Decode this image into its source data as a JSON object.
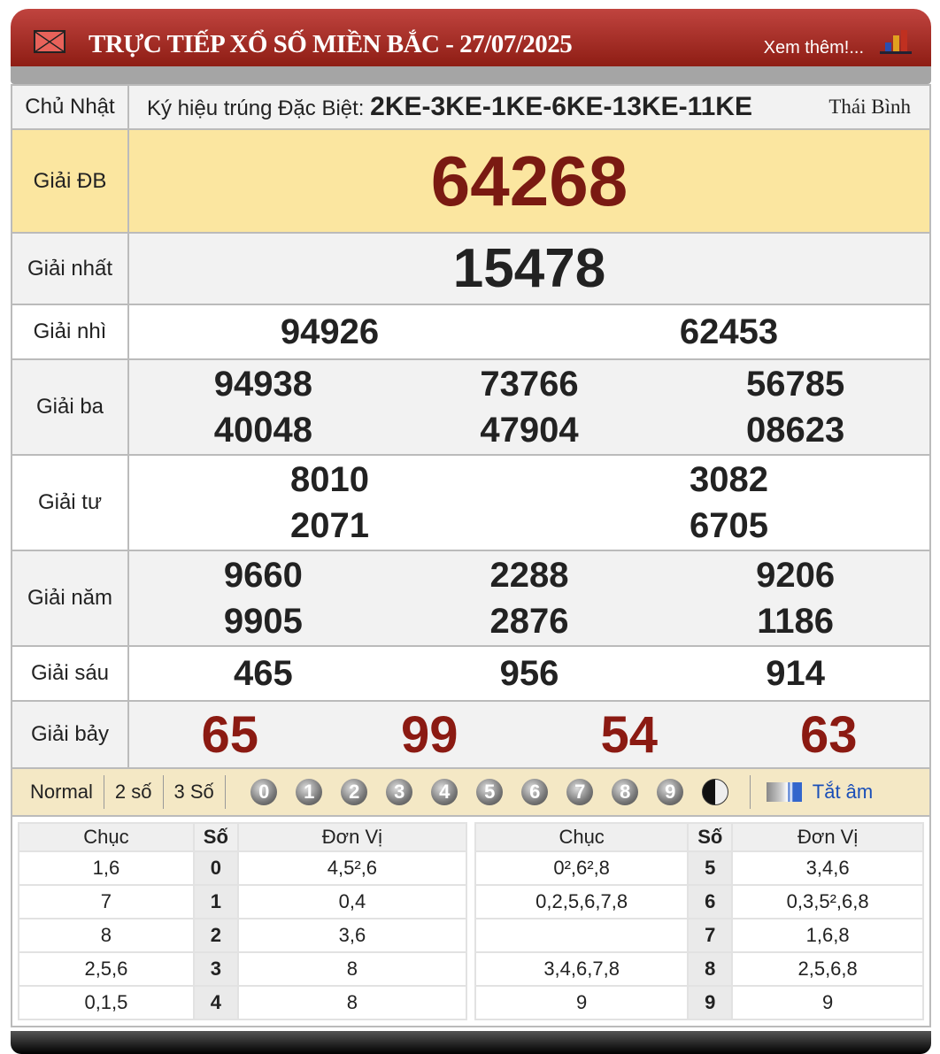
{
  "header": {
    "title": "TRỰC TIẾP XỔ SỐ MIỀN BẮC - 27/07/2025",
    "more_link": "Xem thêm!..."
  },
  "info": {
    "day": "Chủ Nhật",
    "code_label": "Ký hiệu trúng Đặc Biệt:",
    "code": "2KE-3KE-1KE-6KE-13KE-11KE",
    "province": "Thái Bình"
  },
  "prizes": {
    "db": {
      "label": "Giải ĐB",
      "numbers": [
        "64268"
      ]
    },
    "g1": {
      "label": "Giải nhất",
      "numbers": [
        "15478"
      ]
    },
    "g2": {
      "label": "Giải nhì",
      "numbers": [
        "94926",
        "62453"
      ]
    },
    "g3": {
      "label": "Giải ba",
      "numbers": [
        "94938",
        "73766",
        "56785",
        "40048",
        "47904",
        "08623"
      ]
    },
    "g4": {
      "label": "Giải tư",
      "numbers": [
        "8010",
        "3082",
        "2071",
        "6705"
      ]
    },
    "g5": {
      "label": "Giải năm",
      "numbers": [
        "9660",
        "2288",
        "9206",
        "9905",
        "2876",
        "1186"
      ]
    },
    "g6": {
      "label": "Giải sáu",
      "numbers": [
        "465",
        "956",
        "914"
      ]
    },
    "g7": {
      "label": "Giải bảy",
      "numbers": [
        "65",
        "99",
        "54",
        "63"
      ]
    }
  },
  "controls": {
    "modes": [
      "Normal",
      "2 số",
      "3 Số"
    ],
    "balls": [
      "0",
      "1",
      "2",
      "3",
      "4",
      "5",
      "6",
      "7",
      "8",
      "9"
    ],
    "mute": "Tắt âm"
  },
  "loto": {
    "headers": {
      "chuc": "Chục",
      "so": "Số",
      "donvi": "Đơn Vị"
    },
    "left": [
      {
        "chuc": "1,6",
        "so": "0",
        "donvi": "4,5²,6"
      },
      {
        "chuc": "7",
        "so": "1",
        "donvi": "0,4"
      },
      {
        "chuc": "8",
        "so": "2",
        "donvi": "3,6"
      },
      {
        "chuc": "2,5,6",
        "so": "3",
        "donvi": "8"
      },
      {
        "chuc": "0,1,5",
        "so": "4",
        "donvi": "8"
      }
    ],
    "right": [
      {
        "chuc": "0²,6²,8",
        "so": "5",
        "donvi": "3,4,6"
      },
      {
        "chuc": "0,2,5,6,7,8",
        "so": "6",
        "donvi": "0,3,5²,6,8"
      },
      {
        "chuc": "",
        "so": "7",
        "donvi": "1,6,8"
      },
      {
        "chuc": "3,4,6,7,8",
        "so": "8",
        "donvi": "2,5,6,8"
      },
      {
        "chuc": "9",
        "so": "9",
        "donvi": "9"
      }
    ]
  },
  "colors": {
    "header_red": "#a8302a",
    "special_number": "#7a1a12",
    "g7_number": "#8b1a12",
    "db_row": "#fbe6a0",
    "control_bar": "#f4e8c5"
  }
}
